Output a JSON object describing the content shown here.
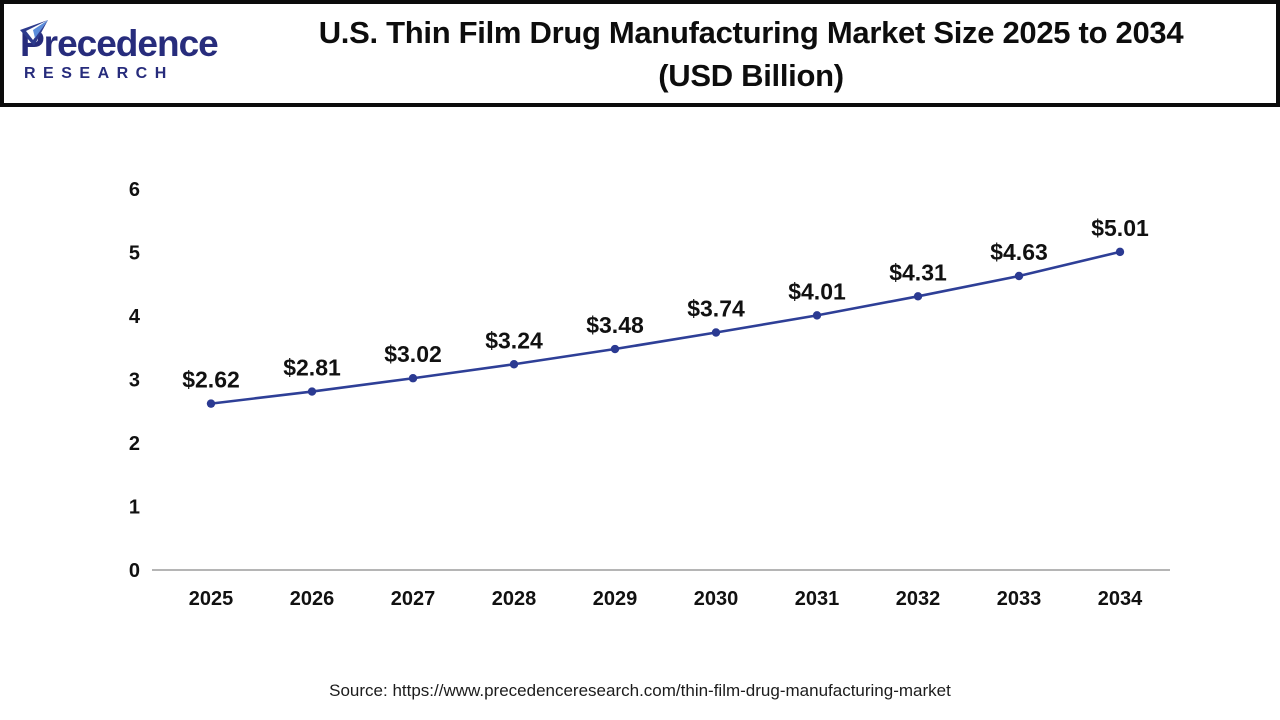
{
  "header": {
    "logo_line1": "Precedence",
    "logo_line2": "RESEARCH",
    "title_line1": "U.S. Thin Film Drug Manufacturing Market Size 2025 to 2034",
    "title_line2": "(USD Billion)"
  },
  "chart_data": {
    "type": "line",
    "title": "U.S. Thin Film Drug Manufacturing Market Size 2025 to 2034 (USD Billion)",
    "categories": [
      "2025",
      "2026",
      "2027",
      "2028",
      "2029",
      "2030",
      "2031",
      "2032",
      "2033",
      "2034"
    ],
    "values": [
      2.62,
      2.81,
      3.02,
      3.24,
      3.48,
      3.74,
      4.01,
      4.31,
      4.63,
      5.01
    ],
    "data_labels": [
      "$2.62",
      "$2.81",
      "$3.02",
      "$3.24",
      "$3.48",
      "$3.74",
      "$4.01",
      "$4.31",
      "$4.63",
      "$5.01"
    ],
    "xlabel": "",
    "ylabel": "",
    "ylim": [
      0,
      6
    ],
    "yticks": [
      0,
      1,
      2,
      3,
      4,
      5,
      6
    ],
    "grid": false,
    "legend": "none",
    "line_color": "#2e3f97",
    "marker_color": "#2b3a92",
    "axis_color": "#b5b5b5",
    "label_color": "#111111"
  },
  "footer": {
    "source": "Source: https://www.precedenceresearch.com/thin-film-drug-manufacturing-market"
  }
}
